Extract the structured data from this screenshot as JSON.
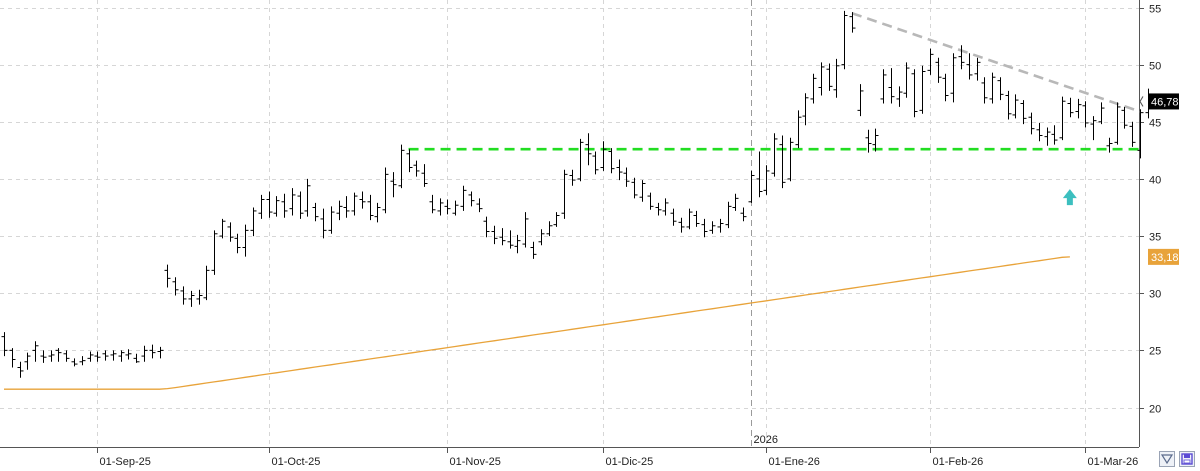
{
  "chart_data": {
    "type": "ohlc",
    "xlabel": "",
    "ylabel": "",
    "ylim": [
      17,
      56
    ],
    "yticks": [
      20,
      25,
      30,
      35,
      40,
      45,
      50,
      55
    ],
    "ytick_labels": [
      "20",
      "25",
      "30",
      "35",
      "40",
      "45",
      "50",
      "55"
    ],
    "grid": true,
    "grid_style": "dashed-light",
    "x_labels": [
      {
        "label": "01-Sep-25",
        "index": 12
      },
      {
        "label": "01-Oct-25",
        "index": 34
      },
      {
        "label": "01-Nov-25",
        "index": 57
      },
      {
        "label": "01-Dic-25",
        "index": 77
      },
      {
        "label": "01-Ene-26",
        "index": 98
      },
      {
        "label": "01-Feb-26",
        "index": 119
      },
      {
        "label": "01-Mar-26",
        "index": 139
      }
    ],
    "year_marker": {
      "label": "2026",
      "index": 96
    },
    "bar_color": "#000000",
    "ohlc": [
      [
        26.2,
        26.6,
        24.5,
        25.0
      ],
      [
        25.0,
        25.2,
        23.5,
        24.2
      ],
      [
        23.5,
        24.0,
        22.6,
        23.2
      ],
      [
        24.0,
        24.8,
        23.3,
        24.5
      ],
      [
        25.0,
        25.8,
        24.0,
        25.4
      ],
      [
        24.5,
        25.0,
        23.9,
        24.4
      ],
      [
        24.5,
        25.0,
        24.0,
        24.6
      ],
      [
        25.0,
        25.2,
        24.0,
        24.8
      ],
      [
        24.7,
        25.0,
        24.0,
        24.3
      ],
      [
        24.0,
        24.3,
        23.6,
        23.8
      ],
      [
        24.0,
        24.5,
        23.7,
        24.1
      ],
      [
        24.3,
        24.9,
        24.0,
        24.6
      ],
      [
        24.5,
        24.9,
        24.0,
        24.4
      ],
      [
        24.7,
        25.0,
        24.1,
        24.5
      ],
      [
        24.6,
        25.0,
        24.1,
        24.7
      ],
      [
        24.5,
        25.0,
        24.0,
        24.8
      ],
      [
        24.6,
        25.1,
        24.2,
        24.7
      ],
      [
        24.3,
        24.7,
        23.9,
        24.0
      ],
      [
        24.5,
        25.4,
        24.0,
        25.0
      ],
      [
        25.0,
        25.5,
        24.3,
        24.8
      ],
      [
        24.9,
        25.3,
        24.3,
        25.0
      ],
      [
        32.0,
        32.5,
        30.5,
        31.3
      ],
      [
        31.0,
        31.4,
        29.8,
        30.3
      ],
      [
        30.2,
        30.6,
        29.0,
        29.5
      ],
      [
        29.5,
        30.2,
        28.8,
        29.8
      ],
      [
        29.5,
        30.3,
        29.0,
        29.8
      ],
      [
        29.6,
        32.4,
        29.4,
        32.0
      ],
      [
        32.0,
        35.5,
        31.6,
        35.2
      ],
      [
        35.0,
        36.5,
        34.8,
        36.3
      ],
      [
        35.8,
        36.2,
        34.5,
        34.9
      ],
      [
        34.8,
        35.2,
        33.5,
        34.0
      ],
      [
        34.0,
        36.0,
        33.2,
        35.5
      ],
      [
        35.5,
        37.5,
        35.0,
        37.2
      ],
      [
        37.0,
        38.6,
        36.5,
        38.2
      ],
      [
        38.2,
        38.9,
        36.6,
        37.1
      ],
      [
        37.0,
        38.5,
        36.7,
        38.1
      ],
      [
        38.0,
        38.7,
        36.6,
        37.2
      ],
      [
        37.4,
        39.2,
        36.8,
        38.6
      ],
      [
        38.5,
        38.9,
        36.5,
        37.0
      ],
      [
        37.2,
        40.0,
        36.7,
        39.4
      ],
      [
        37.5,
        37.9,
        36.3,
        36.7
      ],
      [
        36.5,
        37.4,
        34.8,
        35.5
      ],
      [
        35.5,
        37.6,
        35.2,
        37.1
      ],
      [
        37.0,
        38.1,
        36.4,
        37.6
      ],
      [
        37.5,
        38.5,
        36.6,
        37.2
      ],
      [
        37.2,
        38.8,
        36.8,
        38.5
      ],
      [
        38.2,
        38.9,
        37.4,
        38.0
      ],
      [
        38.0,
        38.6,
        36.4,
        36.8
      ],
      [
        36.7,
        37.9,
        36.2,
        37.5
      ],
      [
        37.3,
        41.0,
        37.0,
        40.4
      ],
      [
        39.8,
        40.6,
        38.4,
        39.5
      ],
      [
        39.4,
        43.0,
        39.2,
        42.5
      ],
      [
        42.2,
        42.6,
        40.6,
        41.0
      ],
      [
        41.2,
        41.6,
        40.2,
        40.7
      ],
      [
        40.5,
        41.3,
        39.3,
        39.6
      ],
      [
        38.0,
        38.6,
        37.0,
        37.3
      ],
      [
        37.2,
        38.3,
        36.8,
        37.9
      ],
      [
        37.6,
        38.2,
        36.9,
        37.4
      ],
      [
        37.0,
        38.1,
        36.8,
        37.7
      ],
      [
        37.6,
        39.4,
        37.2,
        39.0
      ],
      [
        38.6,
        38.9,
        37.6,
        38.1
      ],
      [
        37.8,
        38.3,
        37.1,
        37.4
      ],
      [
        36.3,
        36.7,
        34.9,
        35.4
      ],
      [
        35.4,
        35.9,
        34.3,
        34.8
      ],
      [
        34.9,
        35.7,
        34.2,
        34.6
      ],
      [
        34.5,
        35.5,
        33.9,
        34.2
      ],
      [
        34.1,
        35.1,
        33.5,
        34.6
      ],
      [
        34.3,
        37.1,
        34.0,
        36.5
      ],
      [
        34.0,
        34.5,
        33.0,
        33.4
      ],
      [
        34.5,
        35.6,
        34.2,
        35.2
      ],
      [
        35.2,
        36.3,
        35.0,
        35.9
      ],
      [
        36.0,
        37.1,
        35.8,
        36.8
      ],
      [
        37.0,
        40.8,
        36.5,
        40.4
      ],
      [
        40.3,
        40.8,
        39.4,
        39.9
      ],
      [
        40.0,
        43.5,
        39.8,
        43.2
      ],
      [
        43.0,
        44.0,
        41.2,
        42.2
      ],
      [
        42.0,
        42.4,
        40.4,
        40.8
      ],
      [
        41.0,
        43.3,
        40.7,
        42.6
      ],
      [
        42.4,
        42.7,
        40.5,
        40.9
      ],
      [
        41.0,
        41.7,
        39.9,
        40.6
      ],
      [
        40.5,
        41.0,
        39.3,
        39.8
      ],
      [
        39.7,
        40.1,
        38.3,
        38.6
      ],
      [
        38.4,
        39.9,
        38.0,
        39.6
      ],
      [
        38.5,
        38.8,
        37.3,
        37.6
      ],
      [
        37.5,
        37.9,
        36.8,
        37.3
      ],
      [
        37.2,
        38.3,
        36.8,
        37.9
      ],
      [
        37.0,
        37.4,
        35.9,
        36.3
      ],
      [
        36.2,
        36.6,
        35.3,
        35.8
      ],
      [
        35.8,
        37.4,
        35.6,
        37.1
      ],
      [
        36.8,
        37.2,
        35.8,
        36.1
      ],
      [
        36.0,
        36.5,
        34.9,
        35.4
      ],
      [
        35.5,
        36.3,
        35.2,
        35.9
      ],
      [
        35.8,
        36.5,
        35.3,
        36.1
      ],
      [
        36.0,
        38.0,
        35.7,
        37.6
      ],
      [
        37.5,
        38.7,
        37.2,
        38.3
      ],
      [
        37.0,
        37.5,
        36.3,
        36.7
      ],
      [
        38.0,
        40.7,
        37.9,
        40.3
      ],
      [
        40.0,
        42.4,
        38.4,
        38.9
      ],
      [
        39.0,
        41.2,
        38.6,
        40.7
      ],
      [
        40.5,
        44.0,
        40.2,
        43.5
      ],
      [
        43.0,
        43.8,
        39.2,
        39.7
      ],
      [
        40.0,
        43.6,
        39.8,
        43.2
      ],
      [
        43.0,
        46.0,
        42.7,
        45.4
      ],
      [
        45.5,
        47.5,
        44.7,
        47.1
      ],
      [
        47.0,
        49.2,
        46.6,
        48.8
      ],
      [
        48.0,
        50.2,
        47.3,
        49.8
      ],
      [
        49.6,
        50.1,
        47.7,
        48.1
      ],
      [
        47.8,
        50.5,
        47.1,
        49.9
      ],
      [
        50.0,
        54.7,
        49.6,
        54.3
      ],
      [
        54.2,
        54.6,
        52.8,
        53.2
      ],
      [
        46.0,
        48.3,
        45.5,
        47.7
      ],
      [
        43.6,
        44.3,
        42.3,
        43.1
      ],
      [
        43.0,
        44.4,
        42.4,
        43.8
      ],
      [
        47.0,
        49.6,
        46.6,
        49.1
      ],
      [
        48.0,
        49.7,
        46.6,
        47.2
      ],
      [
        47.0,
        48.1,
        46.3,
        47.6
      ],
      [
        47.5,
        50.2,
        47.1,
        49.7
      ],
      [
        49.2,
        49.6,
        45.4,
        45.9
      ],
      [
        46.0,
        49.9,
        45.7,
        49.4
      ],
      [
        49.5,
        51.4,
        49.1,
        50.9
      ],
      [
        50.2,
        50.6,
        48.4,
        48.9
      ],
      [
        48.8,
        49.2,
        46.8,
        47.3
      ],
      [
        47.5,
        51.0,
        46.7,
        50.6
      ],
      [
        50.7,
        51.7,
        49.6,
        50.2
      ],
      [
        50.0,
        51.0,
        48.7,
        49.1
      ],
      [
        49.2,
        50.6,
        48.6,
        50.2
      ],
      [
        48.4,
        48.9,
        46.6,
        47.1
      ],
      [
        47.0,
        49.3,
        46.6,
        48.9
      ],
      [
        48.6,
        48.9,
        46.9,
        47.4
      ],
      [
        47.3,
        47.7,
        45.2,
        45.7
      ],
      [
        45.6,
        47.4,
        45.3,
        46.9
      ],
      [
        46.6,
        46.9,
        44.8,
        45.3
      ],
      [
        45.4,
        45.8,
        43.9,
        44.4
      ],
      [
        44.3,
        44.9,
        43.3,
        43.8
      ],
      [
        43.7,
        44.5,
        42.9,
        44.1
      ],
      [
        43.9,
        44.7,
        43.0,
        43.4
      ],
      [
        43.6,
        47.2,
        43.4,
        46.8
      ],
      [
        46.6,
        47.1,
        45.4,
        45.8
      ],
      [
        45.9,
        47.0,
        45.3,
        46.5
      ],
      [
        46.4,
        46.8,
        44.5,
        44.9
      ],
      [
        44.8,
        45.5,
        43.4,
        45.1
      ],
      [
        45.0,
        46.7,
        44.8,
        46.2
      ],
      [
        42.9,
        43.6,
        42.3,
        43.1
      ],
      [
        43.2,
        46.7,
        43.0,
        46.3
      ],
      [
        46.0,
        46.3,
        44.4,
        44.7
      ],
      [
        44.6,
        45.0,
        42.8,
        43.2
      ],
      [
        42.5,
        46.1,
        41.8,
        45.8
      ],
      [
        45.8,
        47.9,
        45.3,
        46.8
      ]
    ],
    "moving_average": {
      "color": "#e8a33a",
      "values": [
        21.6,
        21.6,
        21.6,
        21.6,
        21.6,
        21.6,
        21.6,
        21.6,
        21.6,
        21.6,
        21.6,
        21.6,
        21.6,
        21.6,
        21.6,
        21.6,
        21.6,
        21.6,
        21.6,
        21.6,
        21.6,
        21.65,
        21.74,
        21.84,
        21.94,
        22.04,
        22.14,
        22.24,
        22.34,
        22.44,
        22.54,
        22.64,
        22.74,
        22.84,
        22.94,
        23.04,
        23.14,
        23.24,
        23.34,
        23.44,
        23.54,
        23.64,
        23.74,
        23.84,
        23.94,
        24.04,
        24.14,
        24.24,
        24.34,
        24.44,
        24.54,
        24.64,
        24.74,
        24.84,
        24.94,
        25.04,
        25.14,
        25.24,
        25.34,
        25.44,
        25.54,
        25.64,
        25.74,
        25.84,
        25.94,
        26.04,
        26.14,
        26.24,
        26.34,
        26.44,
        26.54,
        26.64,
        26.74,
        26.84,
        26.94,
        27.04,
        27.14,
        27.24,
        27.34,
        27.44,
        27.54,
        27.64,
        27.74,
        27.84,
        27.94,
        28.04,
        28.14,
        28.24,
        28.34,
        28.44,
        28.54,
        28.64,
        28.74,
        28.84,
        28.94,
        29.04,
        29.14,
        29.24,
        29.34,
        29.44,
        29.54,
        29.64,
        29.74,
        29.84,
        29.94,
        30.04,
        30.14,
        30.24,
        30.34,
        30.44,
        30.54,
        30.64,
        30.74,
        30.84,
        30.94,
        31.04,
        31.14,
        31.24,
        31.34,
        31.44,
        31.54,
        31.64,
        31.74,
        31.84,
        31.94,
        32.04,
        32.14,
        32.24,
        32.34,
        32.44,
        32.54,
        32.64,
        32.74,
        32.84,
        32.94,
        33.04,
        33.14,
        33.18
      ],
      "last_label": "33,18"
    },
    "last_price": {
      "value": 46.78,
      "label": "46,78"
    },
    "support_line": {
      "value": 42.6,
      "from_index": 52,
      "to_index": 146,
      "color": "#22dd22"
    },
    "resistance_line": {
      "from_index": 109,
      "from_value": 54.5,
      "to_index": 146,
      "to_value": 45.9,
      "color": "#b8b8b8"
    },
    "annotation_arrow": {
      "index": 137,
      "value": 38.5,
      "direction": "up",
      "color": "#3cbfbf"
    }
  },
  "controls": {
    "zoom_icon": "zoom-fit-icon",
    "save_icon": "save-disk-icon",
    "accent": "#5b4bd4"
  }
}
